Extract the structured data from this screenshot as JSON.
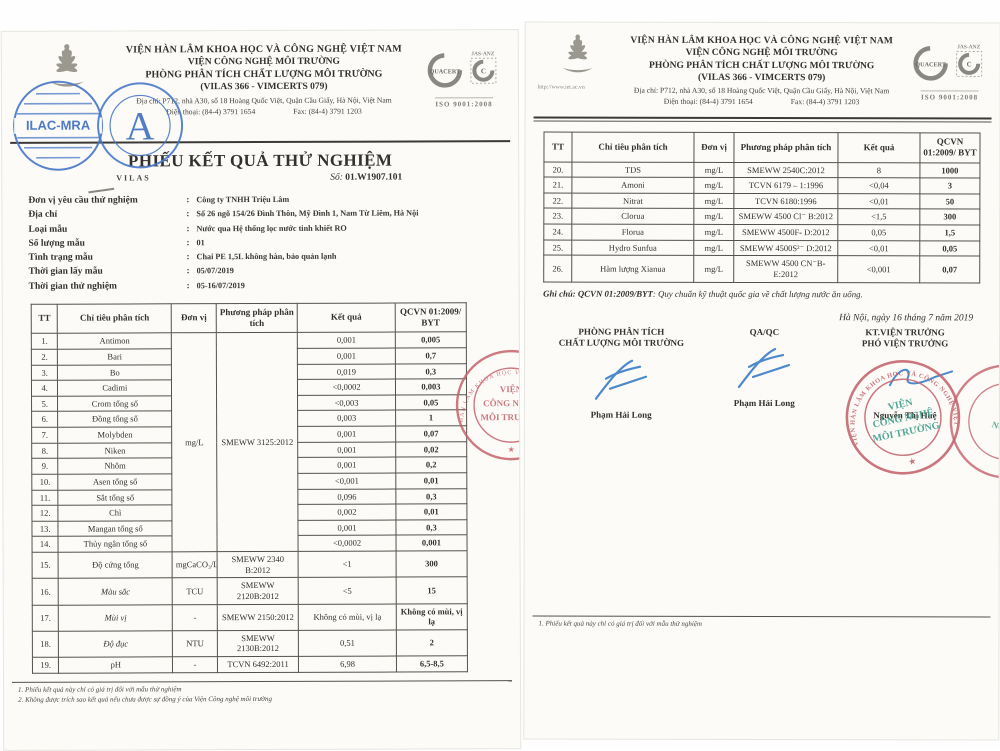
{
  "certs": {
    "quacert": "QUACERT",
    "jas": "JAS-ANZ",
    "iso": "ISO 9001:2008"
  },
  "page_left": {
    "org_lines": [
      "VIỆN HÀN LÂM KHOA HỌC VÀ CÔNG NGHỆ VIỆT NAM",
      "VIỆN CÔNG NGHỆ MÔI TRƯỜNG",
      "PHÒNG PHÂN TÍCH CHẤT LƯỢNG MÔI TRƯỜNG",
      "(VILAS 366 - VIMCERTS 079)"
    ],
    "address": "Địa chỉ: P712, nhà A30, số 18 Hoàng Quốc Việt, Quận Cầu Giấy, Hà Nội, Việt Nam",
    "phone": "Điện thoại: (84-4) 3791 1654",
    "fax": "Fax: (84-4) 3791 1203",
    "ilac_label": "ILAC-MRA",
    "a_letter": "A",
    "vilas_label": "VILAS",
    "title": "PHIẾU KẾT QUẢ THỬ NGHIỆM",
    "doc_no_label": "Số:",
    "doc_no": "01.W1907.101",
    "info": [
      {
        "label": "Đơn vị yêu cầu thử nghiệm",
        "value": "Công ty TNHH Triệu Lâm"
      },
      {
        "label": "Địa chỉ",
        "value": "Số 26 ngõ 154/26 Đình Thôn, Mỹ Đình 1, Nam Từ Liêm, Hà Nội"
      },
      {
        "label": "Loại mẫu",
        "value": "Nước qua Hệ thống lọc nước tinh khiết RO"
      },
      {
        "label": "Số lượng mẫu",
        "value": "01"
      },
      {
        "label": "Tình trạng mẫu",
        "value": "Chai PE 1,5L không hàn, bảo quản lạnh"
      },
      {
        "label": "Thời gian lấy mẫu",
        "value": "05/07/2019"
      },
      {
        "label": "Thời gian thử nghiệm",
        "value": "05-16/07/2019"
      }
    ],
    "table": {
      "headers": [
        "TT",
        "Chỉ tiêu phân tích",
        "Đơn vị",
        "Phương pháp phân tích",
        "Kết quả",
        "QCVN 01:2009/ BYT"
      ],
      "merge": {
        "unit": "mg/L",
        "method": "SMEWW 3125:2012",
        "span": 14
      },
      "rows": [
        {
          "tt": "1.",
          "name": "Antimon",
          "result": "0,001",
          "limit": "0,005"
        },
        {
          "tt": "2.",
          "name": "Bari",
          "result": "0,001",
          "limit": "0,7"
        },
        {
          "tt": "3.",
          "name": "Bo",
          "result": "0,019",
          "limit": "0,3"
        },
        {
          "tt": "4.",
          "name": "Cadimi",
          "result": "<0,0002",
          "limit": "0,003"
        },
        {
          "tt": "5.",
          "name": "Crom tổng số",
          "result": "<0,003",
          "limit": "0,05"
        },
        {
          "tt": "6.",
          "name": "Đồng tổng số",
          "result": "0,003",
          "limit": "1"
        },
        {
          "tt": "7.",
          "name": "Molybden",
          "result": "0,001",
          "limit": "0,07"
        },
        {
          "tt": "8.",
          "name": "Niken",
          "result": "0,001",
          "limit": "0,02"
        },
        {
          "tt": "9.",
          "name": "Nhôm",
          "result": "0,001",
          "limit": "0,2"
        },
        {
          "tt": "10.",
          "name": "Asen tổng số",
          "result": "<0,001",
          "limit": "0,01"
        },
        {
          "tt": "11.",
          "name": "Sắt tổng số",
          "result": "0,096",
          "limit": "0,3"
        },
        {
          "tt": "12.",
          "name": "Chì",
          "result": "0,002",
          "limit": "0,01"
        },
        {
          "tt": "13.",
          "name": "Mangan tổng số",
          "result": "0,001",
          "limit": "0,3"
        },
        {
          "tt": "14.",
          "name": "Thủy ngân tổng số",
          "result": "<0,0002",
          "limit": "0,001"
        },
        {
          "tt": "15.",
          "name": "Độ cứng tổng",
          "unit": "mgCaCO₃/L",
          "method": "SMEWW 2340 B:2012",
          "result": "<1",
          "limit": "300"
        },
        {
          "tt": "16.",
          "name": "Màu sắc",
          "italic": true,
          "unit": "TCU",
          "method": "SMEWW 2120B:2012",
          "result": "<5",
          "limit": "15"
        },
        {
          "tt": "17.",
          "name": "Mùi vị",
          "italic": true,
          "unit": "-",
          "method": "SMEWW 2150:2012",
          "result": "Không có mùi, vị lạ",
          "limit": "Không có mùi, vị lạ"
        },
        {
          "tt": "18.",
          "name": "Độ đục",
          "italic": true,
          "unit": "NTU",
          "method": "SMEWW 2130B:2012",
          "result": "0,51",
          "limit": "2"
        },
        {
          "tt": "19.",
          "name": "pH",
          "unit": "-",
          "method": "TCVN 6492:2011",
          "result": "6,98",
          "limit": "6,5-8,5"
        }
      ]
    },
    "footnotes": [
      "1. Phiếu kết quả này chỉ có giá trị đối với  mẫu thử nghiệm",
      "2. Không được trích sao kết quả nếu chưa được sự đồng ý của Viện Công nghệ môi trường"
    ]
  },
  "page_right": {
    "org_lines": [
      "VIỆN HÀN LÂM KHOA HỌC VÀ CÔNG NGHỆ VIỆT NAM",
      "VIỆN CÔNG NGHỆ MÔI TRƯỜNG",
      "PHÒNG PHÂN TÍCH CHẤT LƯỢNG MÔI TRƯỜNG",
      "(VILAS 366 - VIMCERTS 079)"
    ],
    "url": "http://www.iet.ac.vn",
    "address": "Địa chỉ: P712, nhà A30, số 18 Hoàng Quốc Việt, Quận Cầu Giấy, Hà Nội, Việt Nam",
    "phone": "Điện thoại: (84-4) 3791 1654",
    "fax": "Fax: (84-4) 3791 1203",
    "table": {
      "headers": [
        "TT",
        "Chỉ tiêu phân tích",
        "Đơn vị",
        "Phương pháp phân tích",
        "Kết quả",
        "QCVN 01:2009/ BYT"
      ],
      "rows": [
        {
          "tt": "20.",
          "name": "TDS",
          "unit": "mg/L",
          "method": "SMEWW 2540C:2012",
          "result": "8",
          "limit": "1000"
        },
        {
          "tt": "21.",
          "name": "Amoni",
          "unit": "mg/L",
          "method": "TCVN 6179 – 1:1996",
          "result": "<0,04",
          "limit": "3"
        },
        {
          "tt": "22.",
          "name": "Nitrat",
          "unit": "mg/L",
          "method": "TCVN 6180:1996",
          "result": "<0,01",
          "limit": "50"
        },
        {
          "tt": "23.",
          "name": "Clorua",
          "unit": "mg/L",
          "method": "SMEWW 4500 Cl⁻ B:2012",
          "result": "<1,5",
          "limit": "300"
        },
        {
          "tt": "24.",
          "name": "Florua",
          "unit": "mg/L",
          "method": "SMEWW 4500F- D:2012",
          "result": "0,05",
          "limit": "1,5"
        },
        {
          "tt": "25.",
          "name": "Hydro Sunfua",
          "unit": "mg/L",
          "method": "SMEWW 4500S²⁻ D:2012",
          "result": "<0,01",
          "limit": "0,05"
        },
        {
          "tt": "26.",
          "name": "Hàm lượng Xianua",
          "unit": "mg/L",
          "method": "SMEWW 4500 CN⁻B-E:2012",
          "result": "<0,001",
          "limit": "0,07"
        }
      ]
    },
    "note_label": "Ghi chú: ",
    "note_bold": "QCVN 01:2009/BYT",
    "note_text": ": Quy chuẩn kỹ thuật quốc gia về chất lượng nước ăn uống.",
    "date_line": "Hà Nội, ngày 16 tháng 7 năm 2019",
    "signatures": [
      {
        "title1": "PHÒNG PHÂN TÍCH",
        "title2": "CHẤT LƯỢNG MÔI TRƯỜNG",
        "name": "Phạm Hải Long"
      },
      {
        "title1": "QA/QC",
        "title2": "",
        "name": "Phạm Hải Long"
      },
      {
        "title1": "KT.VIỆN TRƯỞNG",
        "title2": "PHÓ VIỆN TRƯỞNG",
        "name": "Nguyễn Thị Huệ"
      }
    ],
    "stamp": {
      "ring_text": "VIỆN HÀN LÂM KHOA HỌC VÀ CÔNG NGHỆ VIỆT NAM",
      "line1": "VIỆN",
      "line2": "CÔNG NGHỆ",
      "line3": "MÔI TRƯỜNG",
      "star": "★"
    },
    "footnotes": [
      "1. Phiếu kết quả này chỉ có giá trị đối với  mẫu thử nghiệm"
    ]
  }
}
